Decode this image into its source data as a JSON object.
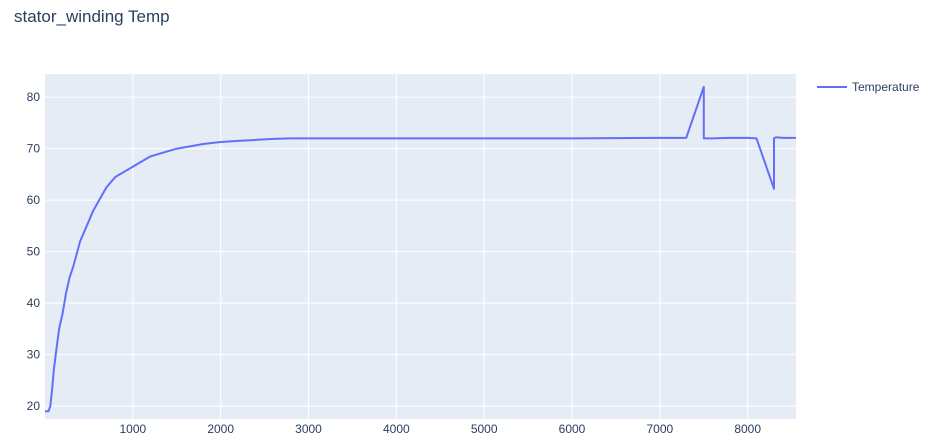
{
  "chart_data": {
    "type": "line",
    "title": "stator_winding Temp",
    "xlabel": "",
    "ylabel": "",
    "xlim": [
      0,
      8550
    ],
    "ylim": [
      17.5,
      84.5
    ],
    "x_ticks": [
      1000,
      2000,
      3000,
      4000,
      5000,
      6000,
      7000,
      8000
    ],
    "y_ticks": [
      20,
      30,
      40,
      50,
      60,
      70,
      80
    ],
    "grid": true,
    "legend": "top-right",
    "colors": {
      "plot_bg": "#e5ecf6",
      "line": "#636efa",
      "text": "#2a3f5f",
      "grid": "#ffffff"
    },
    "series": [
      {
        "name": "Temperature",
        "x": [
          0,
          40,
          60,
          80,
          100,
          130,
          160,
          200,
          240,
          280,
          320,
          360,
          400,
          450,
          500,
          550,
          600,
          650,
          700,
          750,
          800,
          850,
          900,
          1000,
          1100,
          1200,
          1300,
          1400,
          1500,
          1600,
          1700,
          1800,
          1900,
          2000,
          2200,
          2400,
          2600,
          2800,
          3000,
          3500,
          4000,
          5000,
          6000,
          7000,
          7300,
          7500,
          7500,
          7600,
          7800,
          8000,
          8100,
          8300,
          8300,
          8320,
          8400,
          8550
        ],
        "y": [
          19,
          19,
          20,
          23,
          27,
          31,
          35,
          38,
          42,
          45,
          47,
          49.5,
          52,
          54,
          56,
          58,
          59.5,
          61,
          62.5,
          63.5,
          64.5,
          65,
          65.5,
          66.5,
          67.5,
          68.5,
          69,
          69.5,
          70,
          70.3,
          70.6,
          70.9,
          71.1,
          71.3,
          71.5,
          71.7,
          71.9,
          72,
          72,
          72,
          72,
          72,
          72,
          72.1,
          72.1,
          82,
          72,
          72,
          72.1,
          72.1,
          72,
          62.2,
          72,
          72.2,
          72.1,
          72.1
        ]
      }
    ]
  }
}
